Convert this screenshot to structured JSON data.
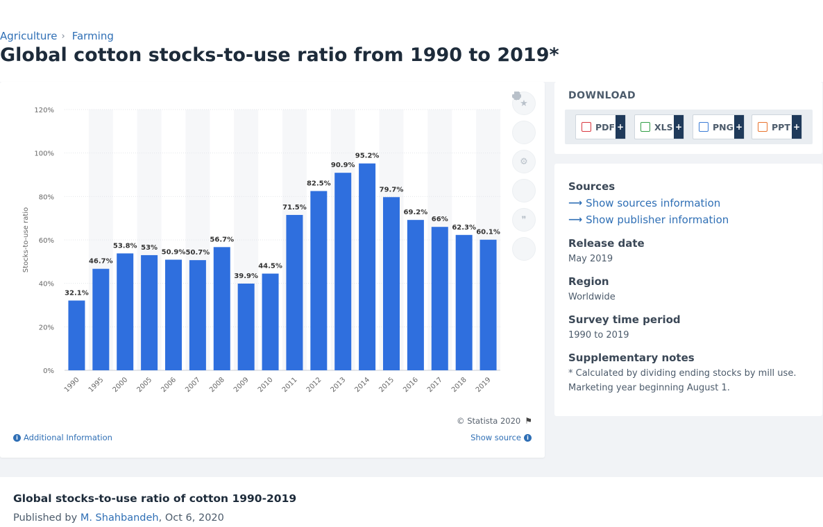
{
  "breadcrumb": {
    "items": [
      "Agriculture",
      "Farming"
    ],
    "sep": "›"
  },
  "page_title": "Global cotton stocks-to-use ratio from 1990 to 2019*",
  "chart_data": {
    "type": "bar",
    "categories": [
      "1990",
      "1995",
      "2000",
      "2005",
      "2006",
      "2007",
      "2008",
      "2009",
      "2010",
      "2011",
      "2012",
      "2013",
      "2014",
      "2015",
      "2016",
      "2017",
      "2018",
      "2019"
    ],
    "values": [
      32.1,
      46.7,
      53.8,
      53,
      50.9,
      50.7,
      56.7,
      39.9,
      44.5,
      71.5,
      82.5,
      90.9,
      95.2,
      79.7,
      69.2,
      66,
      62.3,
      60.1
    ],
    "data_labels": [
      "32.1%",
      "46.7%",
      "53.8%",
      "53%",
      "50.9%",
      "50.7%",
      "56.7%",
      "39.9%",
      "44.5%",
      "71.5%",
      "82.5%",
      "90.9%",
      "95.2%",
      "79.7%",
      "69.2%",
      "66%",
      "62.3%",
      "60.1%"
    ],
    "ylabel": "Stocks-to-use ratio",
    "yticks": [
      "0%",
      "20%",
      "40%",
      "60%",
      "80%",
      "100%",
      "120%"
    ],
    "ylim": [
      0,
      120
    ],
    "grid": true,
    "bar_color": "#2f6fde"
  },
  "copyright": "© Statista 2020",
  "additional_info": "Additional Information",
  "show_source": "Show source",
  "download": {
    "title": "DOWNLOAD",
    "buttons": [
      {
        "label": "PDF",
        "color": "#d9363e"
      },
      {
        "label": "XLS",
        "color": "#2f9e44"
      },
      {
        "label": "PNG",
        "color": "#3a7bd5"
      },
      {
        "label": "PPT",
        "color": "#e8722c"
      }
    ],
    "plus": "+"
  },
  "meta": {
    "sources_h": "Sources",
    "sources_link": "Show sources information",
    "publisher_link": "Show publisher information",
    "release_h": "Release date",
    "release_v": "May 2019",
    "region_h": "Region",
    "region_v": "Worldwide",
    "period_h": "Survey time period",
    "period_v": "1990 to 2019",
    "notes_h": "Supplementary notes",
    "notes_v": "* Calculated by dividing ending stocks by mill use. Marketing year beginning August 1."
  },
  "bottom": {
    "title": "Global stocks-to-use ratio of cotton 1990-2019",
    "published_by": "Published by",
    "author": "M. Shahbandeh",
    "date": ", Oct 6, 2020"
  }
}
